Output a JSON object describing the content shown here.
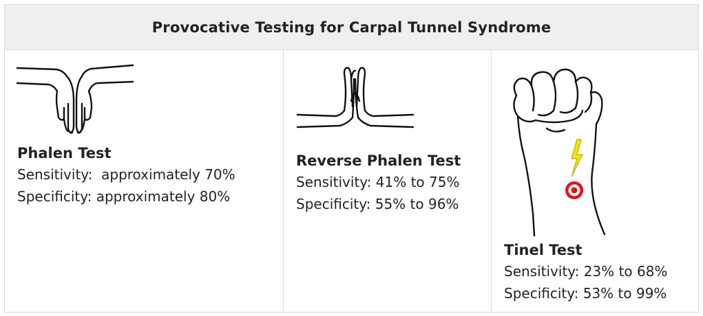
{
  "title": "Provocative Testing for Carpal Tunnel Syndrome",
  "tests": [
    {
      "name": "Phalen Test",
      "sensitivity": "Sensitivity:  approximately 70%",
      "specificity": "Specificity: approximately 80%",
      "illustration": "phalen-hands-icon"
    },
    {
      "name": "Reverse Phalen Test",
      "sensitivity": "Sensitivity: 41% to 75%",
      "specificity": "Specificity: 55% to 96%",
      "illustration": "praying-hands-icon"
    },
    {
      "name": "Tinel Test",
      "sensitivity": "Sensitivity: 23% to 68%",
      "specificity": "Specificity: 53% to 99%",
      "illustration": "fist-with-target-icon"
    }
  ],
  "colors": {
    "header_bg": "#efefef",
    "border": "#d9d9d9",
    "target_red": "#e8101a",
    "lightning_yellow": "#f2e600"
  }
}
